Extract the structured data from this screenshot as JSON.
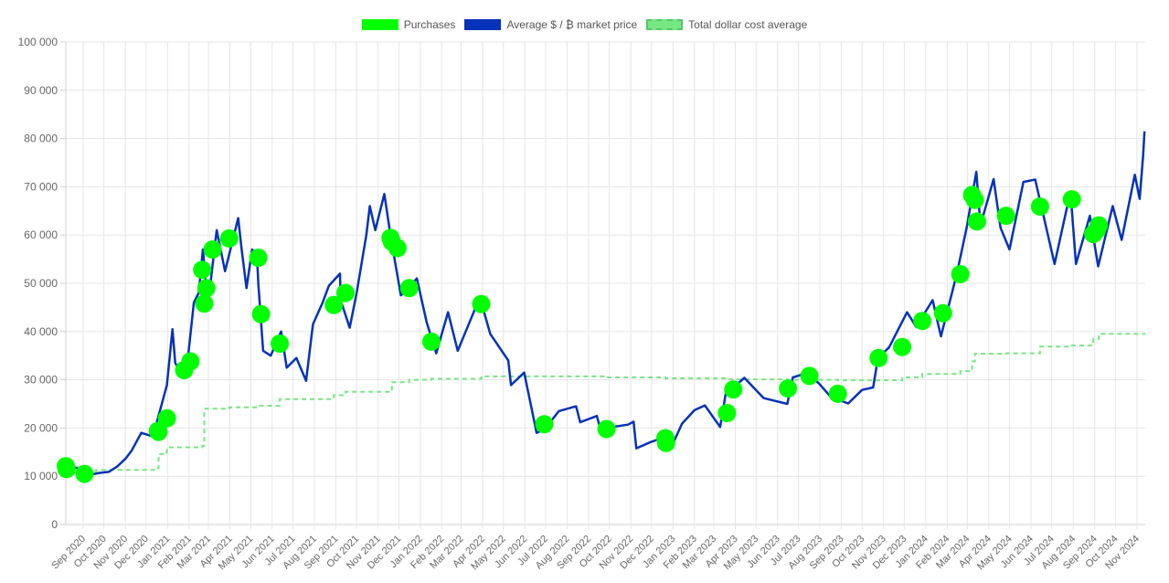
{
  "chart_data": {
    "type": "line",
    "legend_position": "top-center",
    "grid": true,
    "ylim": [
      0,
      100000
    ],
    "yticks": [
      0,
      10000,
      20000,
      30000,
      40000,
      50000,
      60000,
      70000,
      80000,
      90000,
      100000
    ],
    "ytick_labels": [
      "0",
      "10 000",
      "20 000",
      "30 000",
      "40 000",
      "50 000",
      "60 000",
      "70 000",
      "80 000",
      "90 000",
      "100 000"
    ],
    "xlim": [
      "2020-08-07",
      "2024-11-13"
    ],
    "x_ticks": [
      "2020-09-01",
      "2020-10-01",
      "2020-11-01",
      "2020-12-01",
      "2021-01-01",
      "2021-02-01",
      "2021-03-01",
      "2021-04-01",
      "2021-05-01",
      "2021-06-01",
      "2021-07-01",
      "2021-08-01",
      "2021-09-01",
      "2021-10-01",
      "2021-11-01",
      "2021-12-01",
      "2022-01-01",
      "2022-02-01",
      "2022-03-01",
      "2022-04-01",
      "2022-05-01",
      "2022-06-01",
      "2022-07-01",
      "2022-08-01",
      "2022-09-01",
      "2022-10-01",
      "2022-11-01",
      "2022-12-01",
      "2023-01-01",
      "2023-02-01",
      "2023-03-01",
      "2023-04-01",
      "2023-05-01",
      "2023-06-01",
      "2023-07-01",
      "2023-08-01",
      "2023-09-01",
      "2023-10-01",
      "2023-11-01",
      "2023-12-01",
      "2024-01-01",
      "2024-02-01",
      "2024-03-01",
      "2024-04-01",
      "2024-05-01",
      "2024-06-01",
      "2024-07-01",
      "2024-08-01",
      "2024-09-01",
      "2024-10-01",
      "2024-11-01"
    ],
    "x_tick_labels": [
      "Sep 2020",
      "Oct 2020",
      "Nov 2020",
      "Dec 2020",
      "Jan 2021",
      "Feb 2021",
      "Mar 2021",
      "Apr 2021",
      "May 2021",
      "Jun 2021",
      "Jul 2021",
      "Aug 2021",
      "Sep 2021",
      "Oct 2021",
      "Nov 2021",
      "Dec 2021",
      "Jan 2022",
      "Feb 2022",
      "Mar 2022",
      "Apr 2022",
      "May 2022",
      "Jun 2022",
      "Jul 2022",
      "Aug 2022",
      "Sep 2022",
      "Oct 2022",
      "Nov 2022",
      "Dec 2022",
      "Jan 2023",
      "Feb 2023",
      "Mar 2023",
      "Apr 2023",
      "May 2023",
      "Jun 2023",
      "Jul 2023",
      "Aug 2023",
      "Sep 2023",
      "Oct 2023",
      "Nov 2023",
      "Dec 2023",
      "Jan 2024",
      "Feb 2024",
      "Mar 2024",
      "Apr 2024",
      "May 2024",
      "Jun 2024",
      "Jul 2024",
      "Aug 2024",
      "Sep 2024",
      "Oct 2024",
      "Nov 2024"
    ],
    "series": [
      {
        "name": "Purchases",
        "kind": "scatter",
        "color": "#00ff00",
        "points": [
          [
            "2020-08-07",
            12100
          ],
          [
            "2020-08-08",
            11500
          ],
          [
            "2020-09-03",
            10500
          ],
          [
            "2020-12-18",
            19400
          ],
          [
            "2020-12-19",
            19200
          ],
          [
            "2020-12-31",
            22000
          ],
          [
            "2021-01-25",
            32000
          ],
          [
            "2021-02-03",
            33800
          ],
          [
            "2021-02-20",
            52800
          ],
          [
            "2021-02-23",
            45800
          ],
          [
            "2021-02-26",
            49000
          ],
          [
            "2021-03-07",
            57000
          ],
          [
            "2021-03-31",
            59300
          ],
          [
            "2021-05-12",
            55300
          ],
          [
            "2021-05-16",
            43600
          ],
          [
            "2021-06-12",
            37500
          ],
          [
            "2021-08-29",
            45500
          ],
          [
            "2021-09-15",
            48000
          ],
          [
            "2021-11-19",
            59400
          ],
          [
            "2021-11-21",
            58600
          ],
          [
            "2021-11-29",
            57300
          ],
          [
            "2021-12-16",
            49000
          ],
          [
            "2022-01-17",
            37900
          ],
          [
            "2022-03-30",
            45700
          ],
          [
            "2022-06-29",
            20800
          ],
          [
            "2022-09-27",
            19800
          ],
          [
            "2022-12-21",
            17900
          ],
          [
            "2022-12-22",
            16900
          ],
          [
            "2023-03-20",
            23100
          ],
          [
            "2023-03-29",
            28000
          ],
          [
            "2023-06-16",
            28200
          ],
          [
            "2023-07-17",
            30800
          ],
          [
            "2023-08-27",
            27100
          ],
          [
            "2023-10-25",
            34500
          ],
          [
            "2023-11-28",
            36800
          ],
          [
            "2023-12-27",
            42200
          ],
          [
            "2024-01-26",
            43800
          ],
          [
            "2024-02-20",
            51900
          ],
          [
            "2024-03-08",
            68300
          ],
          [
            "2024-03-12",
            67300
          ],
          [
            "2024-03-15",
            62800
          ],
          [
            "2024-04-26",
            64000
          ],
          [
            "2024-06-14",
            65900
          ],
          [
            "2024-07-30",
            67400
          ],
          [
            "2024-08-30",
            60200
          ],
          [
            "2024-09-04",
            61000
          ],
          [
            "2024-09-07",
            62000
          ]
        ]
      },
      {
        "name": "Average $ / ₿ market price",
        "kind": "line",
        "color": "#0532b8",
        "points": [
          [
            "2020-08-07",
            11600
          ],
          [
            "2020-08-20",
            11800
          ],
          [
            "2020-09-03",
            11300
          ],
          [
            "2020-09-10",
            10300
          ],
          [
            "2020-09-25",
            10700
          ],
          [
            "2020-10-08",
            10900
          ],
          [
            "2020-10-20",
            12000
          ],
          [
            "2020-11-01",
            13600
          ],
          [
            "2020-11-10",
            15300
          ],
          [
            "2020-11-24",
            19000
          ],
          [
            "2020-12-01",
            18700
          ],
          [
            "2020-12-10",
            18300
          ],
          [
            "2020-12-17",
            21500
          ],
          [
            "2020-12-31",
            28900
          ],
          [
            "2021-01-08",
            40500
          ],
          [
            "2021-01-12",
            33500
          ],
          [
            "2021-01-22",
            31000
          ],
          [
            "2021-01-30",
            34000
          ],
          [
            "2021-02-08",
            46000
          ],
          [
            "2021-02-15",
            48000
          ],
          [
            "2021-02-21",
            57000
          ],
          [
            "2021-02-28",
            45200
          ],
          [
            "2021-03-13",
            61000
          ],
          [
            "2021-03-25",
            52500
          ],
          [
            "2021-04-13",
            63500
          ],
          [
            "2021-04-18",
            57000
          ],
          [
            "2021-04-25",
            49000
          ],
          [
            "2021-05-03",
            57000
          ],
          [
            "2021-05-10",
            56000
          ],
          [
            "2021-05-12",
            50000
          ],
          [
            "2021-05-19",
            36000
          ],
          [
            "2021-05-30",
            35000
          ],
          [
            "2021-06-14",
            40000
          ],
          [
            "2021-06-22",
            32500
          ],
          [
            "2021-07-06",
            34500
          ],
          [
            "2021-07-20",
            29800
          ],
          [
            "2021-07-30",
            41500
          ],
          [
            "2021-08-13",
            46000
          ],
          [
            "2021-08-22",
            49500
          ],
          [
            "2021-09-07",
            52000
          ],
          [
            "2021-09-08",
            46500
          ],
          [
            "2021-09-21",
            40800
          ],
          [
            "2021-10-01",
            48000
          ],
          [
            "2021-10-15",
            60000
          ],
          [
            "2021-10-20",
            66000
          ],
          [
            "2021-10-28",
            61000
          ],
          [
            "2021-11-10",
            68500
          ],
          [
            "2021-11-20",
            59000
          ],
          [
            "2021-12-04",
            47500
          ],
          [
            "2021-12-15",
            49000
          ],
          [
            "2021-12-27",
            51000
          ],
          [
            "2022-01-10",
            42000
          ],
          [
            "2022-01-24",
            35500
          ],
          [
            "2022-02-10",
            44000
          ],
          [
            "2022-02-24",
            36000
          ],
          [
            "2022-03-28",
            47100
          ],
          [
            "2022-04-12",
            39500
          ],
          [
            "2022-05-08",
            34000
          ],
          [
            "2022-05-12",
            28900
          ],
          [
            "2022-05-31",
            31500
          ],
          [
            "2022-06-13",
            22500
          ],
          [
            "2022-06-18",
            19000
          ],
          [
            "2022-06-30",
            19800
          ],
          [
            "2022-07-20",
            23500
          ],
          [
            "2022-08-14",
            24500
          ],
          [
            "2022-08-20",
            21200
          ],
          [
            "2022-09-13",
            22500
          ],
          [
            "2022-09-20",
            18800
          ],
          [
            "2022-10-05",
            20200
          ],
          [
            "2022-10-28",
            20700
          ],
          [
            "2022-11-05",
            21300
          ],
          [
            "2022-11-09",
            15800
          ],
          [
            "2022-11-30",
            17100
          ],
          [
            "2022-12-14",
            17800
          ],
          [
            "2022-12-31",
            16500
          ],
          [
            "2023-01-14",
            20900
          ],
          [
            "2023-02-01",
            23700
          ],
          [
            "2023-02-16",
            24700
          ],
          [
            "2023-03-10",
            20200
          ],
          [
            "2023-03-18",
            27000
          ],
          [
            "2023-03-30",
            28500
          ],
          [
            "2023-04-14",
            30400
          ],
          [
            "2023-05-12",
            26200
          ],
          [
            "2023-06-15",
            25000
          ],
          [
            "2023-06-23",
            30500
          ],
          [
            "2023-07-14",
            31400
          ],
          [
            "2023-07-31",
            29200
          ],
          [
            "2023-08-17",
            26400
          ],
          [
            "2023-09-11",
            25100
          ],
          [
            "2023-10-01",
            27900
          ],
          [
            "2023-10-17",
            28400
          ],
          [
            "2023-10-24",
            34500
          ],
          [
            "2023-11-09",
            36700
          ],
          [
            "2023-12-05",
            44000
          ],
          [
            "2023-12-18",
            41000
          ],
          [
            "2024-01-11",
            46500
          ],
          [
            "2024-01-23",
            39000
          ],
          [
            "2024-02-15",
            52000
          ],
          [
            "2024-02-29",
            61500
          ],
          [
            "2024-03-14",
            73100
          ],
          [
            "2024-03-20",
            62000
          ],
          [
            "2024-04-08",
            71600
          ],
          [
            "2024-04-18",
            61500
          ],
          [
            "2024-05-01",
            57000
          ],
          [
            "2024-05-21",
            71000
          ],
          [
            "2024-06-07",
            71500
          ],
          [
            "2024-07-05",
            54000
          ],
          [
            "2024-07-28",
            69000
          ],
          [
            "2024-08-05",
            54000
          ],
          [
            "2024-08-25",
            64000
          ],
          [
            "2024-09-06",
            53500
          ],
          [
            "2024-09-27",
            66000
          ],
          [
            "2024-10-10",
            59000
          ],
          [
            "2024-10-29",
            72500
          ],
          [
            "2024-11-05",
            67500
          ],
          [
            "2024-11-10",
            76500
          ],
          [
            "2024-11-12",
            81500
          ]
        ]
      },
      {
        "name": "Total dollar cost average",
        "kind": "step",
        "color": "#77e685",
        "points": [
          [
            "2020-08-07",
            11900
          ],
          [
            "2020-09-03",
            11000
          ],
          [
            "2020-09-20",
            11300
          ],
          [
            "2020-12-18",
            11700
          ],
          [
            "2020-12-19",
            14600
          ],
          [
            "2020-12-31",
            16000
          ],
          [
            "2021-02-20",
            16300
          ],
          [
            "2021-02-23",
            24000
          ],
          [
            "2021-03-31",
            24300
          ],
          [
            "2021-05-12",
            24600
          ],
          [
            "2021-06-12",
            26000
          ],
          [
            "2021-08-29",
            26800
          ],
          [
            "2021-09-15",
            27500
          ],
          [
            "2021-11-19",
            27700
          ],
          [
            "2021-11-21",
            29500
          ],
          [
            "2021-12-16",
            30000
          ],
          [
            "2022-01-17",
            30200
          ],
          [
            "2022-03-30",
            30500
          ],
          [
            "2022-04-01",
            30700
          ],
          [
            "2022-06-29",
            30700
          ],
          [
            "2022-09-27",
            30500
          ],
          [
            "2022-12-21",
            30300
          ],
          [
            "2023-03-20",
            30100
          ],
          [
            "2023-06-16",
            30000
          ],
          [
            "2023-08-27",
            29900
          ],
          [
            "2023-10-25",
            29900
          ],
          [
            "2023-11-28",
            30500
          ],
          [
            "2023-12-27",
            31200
          ],
          [
            "2024-02-20",
            31800
          ],
          [
            "2024-03-08",
            33800
          ],
          [
            "2024-03-12",
            35400
          ],
          [
            "2024-04-26",
            35500
          ],
          [
            "2024-06-14",
            36900
          ],
          [
            "2024-07-30",
            37100
          ],
          [
            "2024-08-30",
            38500
          ],
          [
            "2024-09-07",
            39500
          ],
          [
            "2024-11-13",
            39500
          ]
        ]
      }
    ]
  }
}
